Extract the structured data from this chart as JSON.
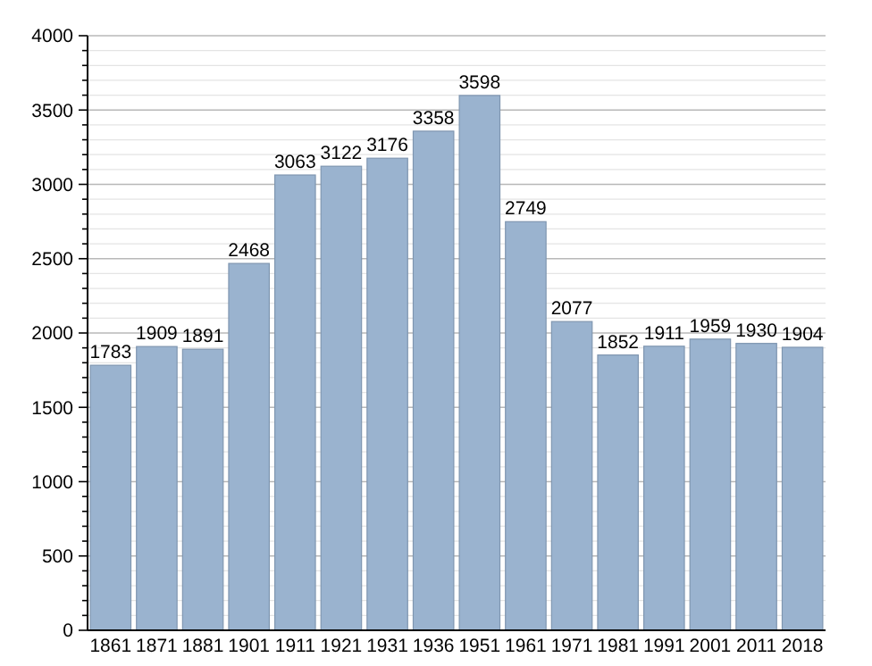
{
  "chart_data": {
    "type": "bar",
    "categories": [
      "1861",
      "1871",
      "1881",
      "1901",
      "1911",
      "1921",
      "1931",
      "1936",
      "1951",
      "1961",
      "1971",
      "1981",
      "1991",
      "2001",
      "2011",
      "2018"
    ],
    "values": [
      1783,
      1909,
      1891,
      2468,
      3063,
      3122,
      3176,
      3358,
      3598,
      2749,
      2077,
      1852,
      1911,
      1959,
      1930,
      1904
    ],
    "color": "#9ab3cf",
    "ylim": [
      0,
      4000
    ],
    "yticks": [
      0,
      {
        "value": 100,
        "label": null
      },
      {
        "value": 200,
        "label": null
      },
      {
        "value": 300,
        "label": null
      },
      {
        "value": 400,
        "label": null
      },
      500,
      {
        "value": 600,
        "label": null
      },
      {
        "value": 700,
        "label": null
      },
      {
        "value": 800,
        "label": null
      },
      {
        "value": 900,
        "label": null
      },
      1000,
      {
        "value": 1100,
        "label": null
      },
      {
        "value": 1200,
        "label": null
      },
      {
        "value": 1300,
        "label": null
      },
      {
        "value": 1400,
        "label": null
      },
      1500,
      {
        "value": 1600,
        "label": null
      },
      {
        "value": 1700,
        "label": null
      },
      {
        "value": 1800,
        "label": null
      },
      {
        "value": 1900,
        "label": null
      },
      2000,
      {
        "value": 2100,
        "label": null
      },
      {
        "value": 2200,
        "label": null
      },
      {
        "value": 2300,
        "label": null
      },
      {
        "value": 2400,
        "label": null
      },
      2500,
      {
        "value": 2600,
        "label": null
      },
      {
        "value": 2700,
        "label": null
      },
      {
        "value": 2800,
        "label": null
      },
      {
        "value": 2900,
        "label": null
      },
      3000,
      {
        "value": 3100,
        "label": null
      },
      {
        "value": 3200,
        "label": null
      },
      {
        "value": 3300,
        "label": null
      },
      {
        "value": 3400,
        "label": null
      },
      3500,
      {
        "value": 3600,
        "label": null
      },
      {
        "value": 3700,
        "label": null
      },
      {
        "value": 3800,
        "label": null
      },
      {
        "value": 3900,
        "label": null
      },
      4000
    ],
    "grid": "y",
    "data_labels": true
  }
}
